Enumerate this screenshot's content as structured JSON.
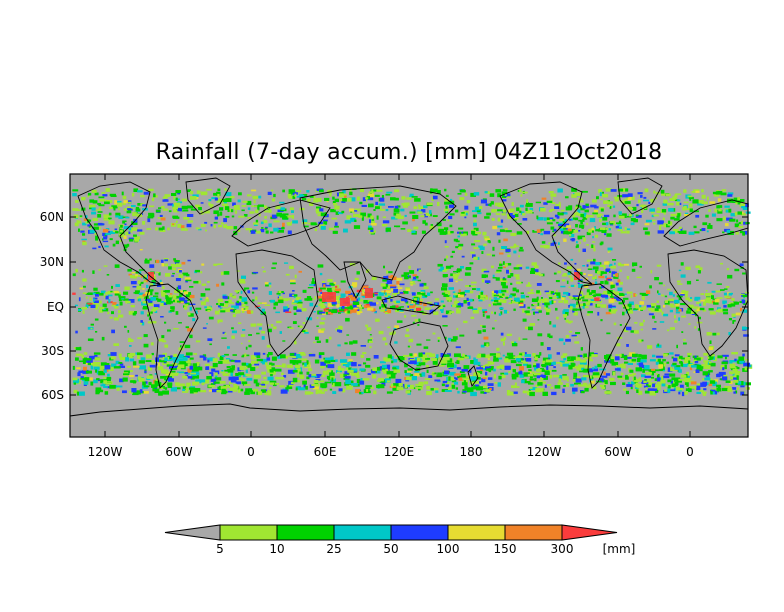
{
  "map": {
    "title": "Rainfall (7-day accum.) [mm] 04Z11Oct2018",
    "lat_labels": [
      "60N",
      "30N",
      "EQ",
      "30S",
      "60S"
    ],
    "lon_labels": [
      "120W",
      "60W",
      "0",
      "60E",
      "120E",
      "180",
      "120W",
      "60W",
      "0"
    ],
    "ocean_color": "#a8a8a8",
    "coast_color": "#000000"
  },
  "legend": {
    "unit": "[mm]",
    "labels": [
      "5",
      "10",
      "25",
      "50",
      "100",
      "150",
      "300"
    ],
    "colors": [
      "#a0e632",
      "#00d200",
      "#00c8c8",
      "#1e3cff",
      "#e6dc32",
      "#f08228",
      "#fa3c3c"
    ],
    "under_color": "#a8a8a8"
  }
}
